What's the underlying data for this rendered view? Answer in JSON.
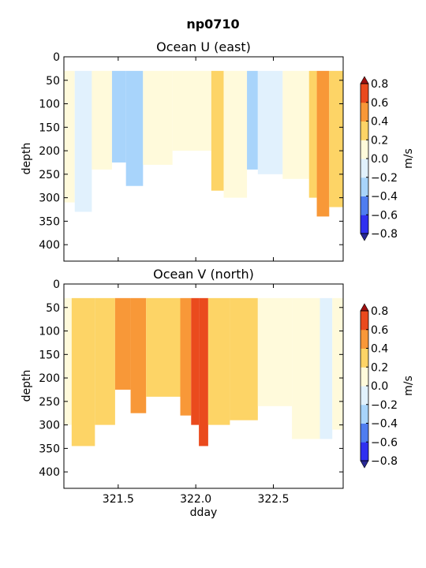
{
  "figure": {
    "title": "np0710"
  },
  "chart_data": [
    {
      "type": "heatmap",
      "title": "Ocean U (east)",
      "xlabel": "",
      "ylabel": "depth",
      "xlim": [
        321.15,
        322.95
      ],
      "ylim": [
        435,
        0
      ],
      "yticks": [
        0,
        50,
        100,
        150,
        200,
        250,
        300,
        350,
        400
      ],
      "xticks": [
        321.5,
        322.0,
        322.5
      ],
      "xtick_labels_shown": false,
      "colorbar": {
        "label": "m/s",
        "ticks": [
          "0.8",
          "0.6",
          "0.4",
          "0.2",
          "0.0",
          "−0.2",
          "−0.4",
          "−0.6",
          "−0.8"
        ]
      },
      "columns": [
        {
          "x0": 321.15,
          "x1": 321.22,
          "bottom": 310,
          "value": 0.1
        },
        {
          "x0": 321.22,
          "x1": 321.33,
          "bottom": 330,
          "value": -0.1
        },
        {
          "x0": 321.33,
          "x1": 321.46,
          "bottom": 240,
          "value": 0.05
        },
        {
          "x0": 321.46,
          "x1": 321.55,
          "bottom": 225,
          "value": -0.3
        },
        {
          "x0": 321.55,
          "x1": 321.66,
          "bottom": 275,
          "value": -0.3
        },
        {
          "x0": 321.66,
          "x1": 321.85,
          "bottom": 230,
          "value": 0.1
        },
        {
          "x0": 321.85,
          "x1": 322.1,
          "bottom": 200,
          "value": 0.05
        },
        {
          "x0": 322.1,
          "x1": 322.18,
          "bottom": 285,
          "value": 0.3
        },
        {
          "x0": 322.18,
          "x1": 322.33,
          "bottom": 300,
          "value": 0.05
        },
        {
          "x0": 322.33,
          "x1": 322.4,
          "bottom": 240,
          "value": -0.25
        },
        {
          "x0": 322.4,
          "x1": 322.56,
          "bottom": 250,
          "value": -0.1
        },
        {
          "x0": 322.56,
          "x1": 322.73,
          "bottom": 260,
          "value": 0.1
        },
        {
          "x0": 322.73,
          "x1": 322.78,
          "bottom": 300,
          "value": 0.3
        },
        {
          "x0": 322.78,
          "x1": 322.86,
          "bottom": 340,
          "value": 0.5
        },
        {
          "x0": 322.86,
          "x1": 322.95,
          "bottom": 320,
          "value": 0.3
        }
      ]
    },
    {
      "type": "heatmap",
      "title": "Ocean V (north)",
      "xlabel": "dday",
      "ylabel": "depth",
      "xlim": [
        321.15,
        322.95
      ],
      "ylim": [
        435,
        0
      ],
      "yticks": [
        0,
        50,
        100,
        150,
        200,
        250,
        300,
        350,
        400
      ],
      "xticks": [
        321.5,
        322.0,
        322.5
      ],
      "xtick_labels": [
        "321.5",
        "322.0",
        "322.5"
      ],
      "colorbar": {
        "label": "m/s",
        "ticks": [
          "0.8",
          "0.6",
          "0.4",
          "0.2",
          "0.0",
          "−0.2",
          "−0.4",
          "−0.6",
          "−0.8"
        ]
      },
      "columns": [
        {
          "x0": 321.15,
          "x1": 321.2,
          "bottom": 300,
          "value": 0.1
        },
        {
          "x0": 321.2,
          "x1": 321.35,
          "bottom": 345,
          "value": 0.3
        },
        {
          "x0": 321.35,
          "x1": 321.48,
          "bottom": 300,
          "value": 0.3
        },
        {
          "x0": 321.48,
          "x1": 321.58,
          "bottom": 225,
          "value": 0.5
        },
        {
          "x0": 321.58,
          "x1": 321.68,
          "bottom": 275,
          "value": 0.6
        },
        {
          "x0": 321.68,
          "x1": 321.9,
          "bottom": 240,
          "value": 0.3
        },
        {
          "x0": 321.9,
          "x1": 321.97,
          "bottom": 280,
          "value": 0.5
        },
        {
          "x0": 321.97,
          "x1": 322.02,
          "bottom": 300,
          "value": 0.7
        },
        {
          "x0": 322.02,
          "x1": 322.08,
          "bottom": 345,
          "value": 0.7
        },
        {
          "x0": 322.08,
          "x1": 322.22,
          "bottom": 300,
          "value": 0.3
        },
        {
          "x0": 322.22,
          "x1": 322.4,
          "bottom": 290,
          "value": 0.3
        },
        {
          "x0": 322.4,
          "x1": 322.62,
          "bottom": 260,
          "value": 0.1
        },
        {
          "x0": 322.62,
          "x1": 322.8,
          "bottom": 330,
          "value": 0.05
        },
        {
          "x0": 322.8,
          "x1": 322.88,
          "bottom": 330,
          "value": -0.1
        },
        {
          "x0": 322.88,
          "x1": 322.95,
          "bottom": 310,
          "value": 0.1
        }
      ]
    }
  ],
  "colormap": {
    "levels": [
      -0.8,
      -0.6,
      -0.4,
      -0.2,
      0.0,
      0.2,
      0.4,
      0.6,
      0.8
    ],
    "colors": [
      "#3030f0",
      "#4f7df0",
      "#a8d4fb",
      "#e1f1fd",
      "#fffadb",
      "#fdd466",
      "#f89838",
      "#ea4a1d"
    ],
    "over": "#a01010",
    "under": "#282896"
  }
}
